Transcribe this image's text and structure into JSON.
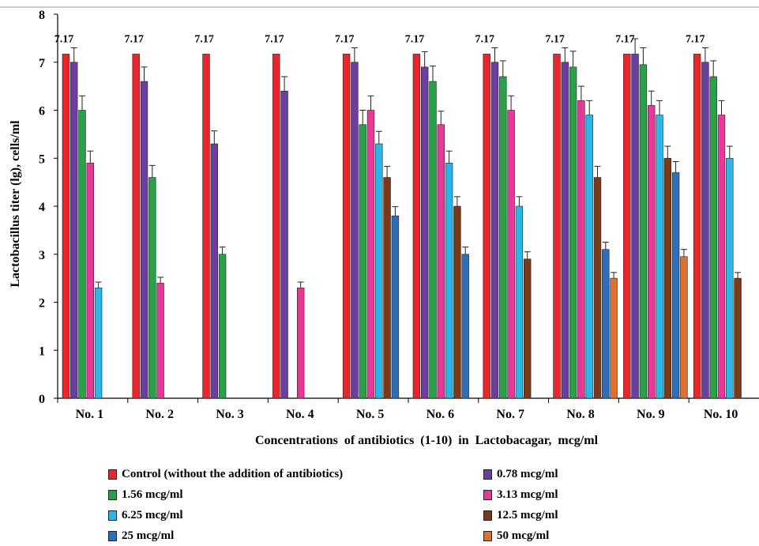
{
  "chart_data": {
    "type": "bar",
    "xlabel": "Concentrations  of antibiotics  (1-10)  in  Lactobacagar,  mcg/ml",
    "ylabel": "Lactobacillus  titer  (lg),  cells/ml",
    "ylim": [
      0,
      8
    ],
    "yticks": [
      "0",
      "1",
      "2",
      "3",
      "4",
      "5",
      "6",
      "7",
      "8"
    ],
    "categories": [
      "No. 1",
      "No. 2",
      "No. 3",
      "No. 4",
      "No. 5",
      "No. 6",
      "No. 7",
      "No. 8",
      "No. 9",
      "No. 10"
    ],
    "control_label_text": "7.17",
    "legend_position": "bottom",
    "grid": false,
    "series": [
      {
        "name": "Control (without the addition of antibiotics)",
        "color": "#e8262b",
        "values": [
          7.17,
          7.17,
          7.17,
          7.17,
          7.17,
          7.17,
          7.17,
          7.17,
          7.17,
          7.17
        ],
        "errors": [
          0,
          0,
          0,
          0,
          0,
          0,
          0,
          0,
          0,
          0
        ]
      },
      {
        "name": "0.78 mcg/ml",
        "color": "#6b3fa0",
        "values": [
          7.0,
          6.6,
          5.3,
          6.4,
          7.0,
          6.9,
          7.0,
          7.0,
          7.17,
          7.0
        ],
        "errors": [
          0.3,
          0.3,
          0.27,
          0.3,
          0.3,
          0.32,
          0.3,
          0.3,
          0.32,
          0.3
        ]
      },
      {
        "name": "1.56 mcg/ml",
        "color": "#2aa048",
        "values": [
          6.0,
          4.6,
          3.0,
          null,
          5.7,
          6.6,
          6.7,
          6.9,
          6.95,
          6.7
        ],
        "errors": [
          0.3,
          0.25,
          0.15,
          0.3,
          0.3,
          0.32,
          0.33,
          0.33,
          0.35,
          0.33
        ]
      },
      {
        "name": "3.13 mcg/ml",
        "color": "#e8399a",
        "values": [
          4.9,
          2.4,
          null,
          2.3,
          6.0,
          5.7,
          6.0,
          6.2,
          6.1,
          5.9
        ],
        "errors": [
          0.25,
          0.12,
          0,
          0.12,
          0.3,
          0.28,
          0.3,
          0.3,
          0.3,
          0.3
        ]
      },
      {
        "name": "6.25 mcg/ml",
        "color": "#29b6e8",
        "values": [
          2.3,
          null,
          null,
          null,
          5.3,
          4.9,
          4.0,
          5.9,
          5.9,
          5.0
        ],
        "errors": [
          0.12,
          0,
          0,
          0,
          0.26,
          0.25,
          0.2,
          0.3,
          0.3,
          0.25
        ]
      },
      {
        "name": "12.5 mcg/ml",
        "color": "#7a3a1a",
        "values": [
          null,
          null,
          null,
          null,
          4.6,
          4.0,
          2.9,
          4.6,
          5.0,
          2.5
        ],
        "errors": [
          0,
          0,
          0,
          0,
          0.23,
          0.2,
          0.15,
          0.23,
          0.25,
          0.12
        ]
      },
      {
        "name": "25 mcg/ml",
        "color": "#2d6fb8",
        "values": [
          null,
          null,
          null,
          null,
          3.8,
          3.0,
          null,
          3.1,
          4.7,
          null
        ],
        "errors": [
          0,
          0,
          0,
          0,
          0.19,
          0.15,
          0,
          0.15,
          0.23,
          0
        ]
      },
      {
        "name": "50 mcg/ml",
        "color": "#e07030",
        "values": [
          null,
          null,
          null,
          null,
          null,
          null,
          null,
          2.5,
          2.95,
          null
        ],
        "errors": [
          0,
          0,
          0,
          0,
          0,
          0,
          0,
          0.12,
          0.15,
          0
        ]
      }
    ]
  }
}
